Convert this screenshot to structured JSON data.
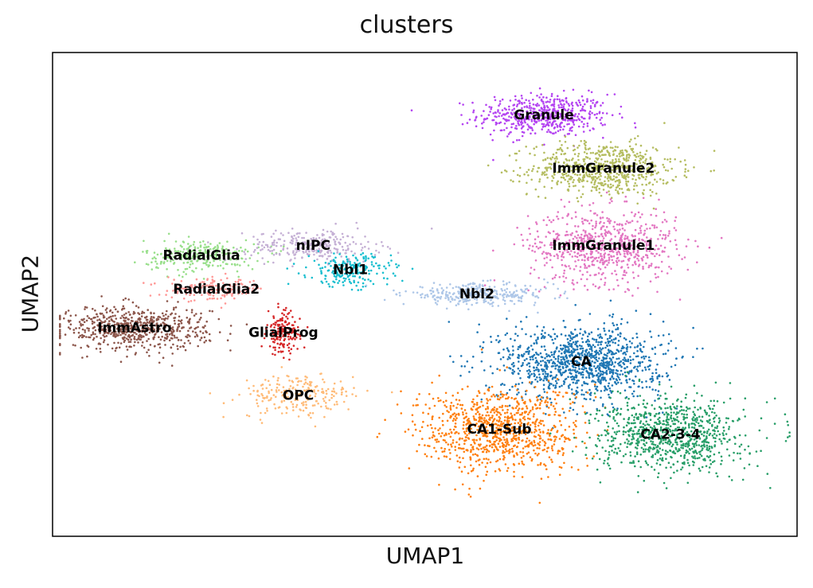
{
  "chart_data": {
    "type": "scatter",
    "title": "clusters",
    "xlabel": "UMAP1",
    "ylabel": "UMAP2",
    "xlim": [
      0,
      100
    ],
    "ylim": [
      0,
      100
    ],
    "grid": false,
    "legend": "on data",
    "clusters": [
      {
        "name": "Granule",
        "color": "#b444f1",
        "center": [
          66,
          87
        ],
        "spread": [
          8,
          4
        ],
        "count": 520
      },
      {
        "name": "ImmGranule2",
        "color": "#b5bd61",
        "center": [
          74,
          76
        ],
        "spread": [
          9,
          5
        ],
        "count": 650
      },
      {
        "name": "ImmGranule1",
        "color": "#e377c2",
        "center": [
          74,
          60
        ],
        "spread": [
          9,
          7
        ],
        "count": 700
      },
      {
        "name": "RadialGlia",
        "color": "#98df8a",
        "center": [
          20,
          58
        ],
        "spread": [
          7,
          3
        ],
        "count": 260
      },
      {
        "name": "nIPC",
        "color": "#c5b0d5",
        "center": [
          35,
          60
        ],
        "spread": [
          8,
          3
        ],
        "count": 280
      },
      {
        "name": "Nbl1",
        "color": "#17becf",
        "center": [
          40,
          55
        ],
        "spread": [
          5,
          3
        ],
        "count": 220
      },
      {
        "name": "Nbl2",
        "color": "#aec7e8",
        "center": [
          57,
          50
        ],
        "spread": [
          9,
          2
        ],
        "count": 330
      },
      {
        "name": "RadialGlia2",
        "color": "#ff9896",
        "center": [
          22,
          51
        ],
        "spread": [
          6,
          2
        ],
        "count": 160
      },
      {
        "name": "ImmAstro",
        "color": "#8c564b",
        "center": [
          11,
          43
        ],
        "spread": [
          9,
          4
        ],
        "count": 650
      },
      {
        "name": "GlialProg",
        "color": "#d62728",
        "center": [
          31,
          42
        ],
        "spread": [
          2,
          4
        ],
        "count": 160
      },
      {
        "name": "OPC",
        "color": "#ffbb78",
        "center": [
          33,
          29
        ],
        "spread": [
          7,
          4
        ],
        "count": 230
      },
      {
        "name": "CA",
        "color": "#1f77b4",
        "center": [
          71,
          36
        ],
        "spread": [
          10,
          7
        ],
        "count": 1100
      },
      {
        "name": "CA1-Sub",
        "color": "#ff7f0e",
        "center": [
          60,
          22
        ],
        "spread": [
          10,
          8
        ],
        "count": 900
      },
      {
        "name": "CA2-3-4",
        "color": "#279e68",
        "center": [
          83,
          21
        ],
        "spread": [
          9,
          7
        ],
        "count": 850
      }
    ]
  }
}
